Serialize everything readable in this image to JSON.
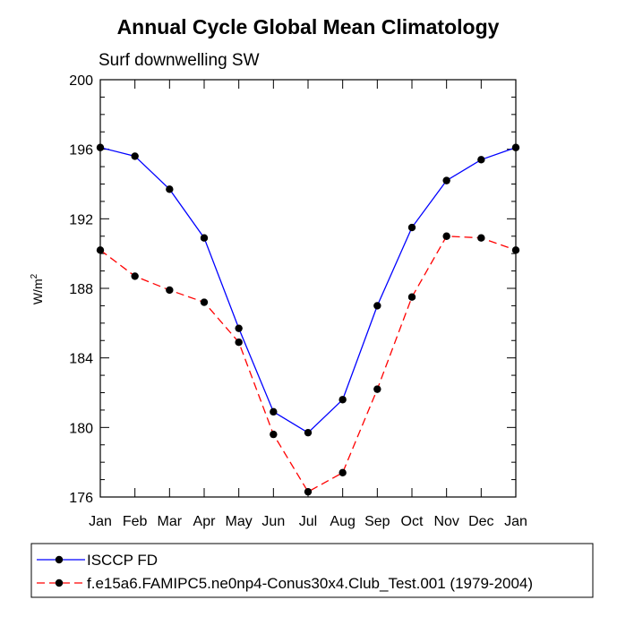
{
  "chart_data": {
    "type": "line",
    "title": "Annual Cycle Global Mean Climatology",
    "subtitle": "Surf downwelling SW",
    "ylabel": "W/m",
    "ylabel_sup": "2",
    "xlabel": "",
    "categories": [
      "Jan",
      "Feb",
      "Mar",
      "Apr",
      "May",
      "Jun",
      "Jul",
      "Aug",
      "Sep",
      "Oct",
      "Nov",
      "Dec",
      "Jan"
    ],
    "ylim": [
      176,
      200
    ],
    "yticks": [
      176,
      180,
      184,
      188,
      192,
      196,
      200
    ],
    "legend_position": "bottom",
    "series": [
      {
        "name": "ISCCP FD",
        "color": "#0000ff",
        "style": "solid",
        "marker": "circle",
        "values": [
          196.1,
          195.6,
          193.7,
          190.9,
          185.7,
          180.9,
          179.7,
          181.6,
          187.0,
          191.5,
          194.2,
          195.4,
          196.1
        ]
      },
      {
        "name": "f.e15a6.FAMIPC5.ne0np4-Conus30x4.Club_Test.001 (1979-2004)",
        "color": "#ff0000",
        "style": "dashed",
        "marker": "circle",
        "values": [
          190.2,
          188.7,
          187.9,
          187.2,
          184.9,
          179.6,
          176.3,
          177.4,
          182.2,
          187.5,
          191.0,
          190.9,
          190.2
        ]
      }
    ]
  }
}
